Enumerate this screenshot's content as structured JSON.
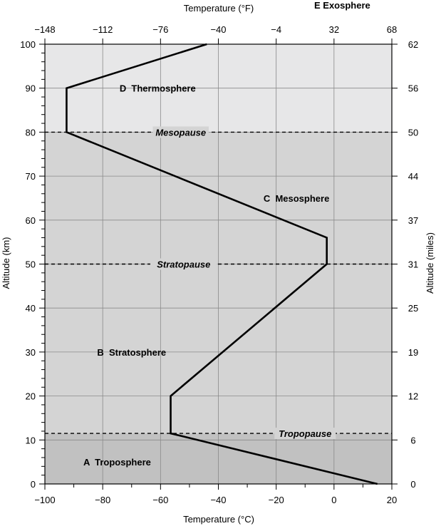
{
  "chart_data": {
    "type": "line",
    "xlabel_bottom": "Temperature (°C)",
    "xlabel_top": "Temperature (°F)",
    "ylabel_left": "Altitude (km)",
    "ylabel_right": "Altitude (miles)",
    "xlim": [
      -100,
      20
    ],
    "ylim": [
      0,
      100
    ],
    "bottom_ticks": [
      -100,
      -80,
      -60,
      -40,
      -20,
      0,
      20
    ],
    "bottom_tick_labels": [
      "−100",
      "−80",
      "−60",
      "−40",
      "−20",
      "0",
      "20"
    ],
    "top_ticks_c": [
      -100,
      -80,
      -60,
      -40,
      -20,
      0,
      20
    ],
    "top_tick_labels": [
      "−148",
      "−112",
      "−76",
      "−40",
      "−4",
      "32",
      "68"
    ],
    "left_ticks": [
      0,
      10,
      20,
      30,
      40,
      50,
      60,
      70,
      80,
      90,
      100
    ],
    "left_tick_labels": [
      "0",
      "10",
      "20",
      "30",
      "40",
      "50",
      "60",
      "70",
      "80",
      "90",
      "100"
    ],
    "right_ticks_km": [
      0,
      10,
      20,
      30,
      40,
      50,
      60,
      70,
      80,
      90,
      100
    ],
    "right_tick_labels": [
      "0",
      "6",
      "12",
      "19",
      "25",
      "31",
      "37",
      "44",
      "50",
      "56",
      "62"
    ],
    "grid": true,
    "series": [
      {
        "x": [
          15,
          -56.5,
          -56.5,
          -2.5,
          -2.5,
          -92.5,
          -92.5,
          -44
        ],
        "y": [
          0,
          11.5,
          20,
          50,
          56,
          80,
          90,
          100
        ]
      }
    ],
    "bands": [
      {
        "from": 0,
        "to": 11.5,
        "color": "#c1c1c1"
      },
      {
        "from": 11.5,
        "to": 80,
        "color": "#d4d4d4"
      },
      {
        "from": 80,
        "to": 100,
        "color": "#e7e7e8"
      }
    ],
    "boundaries": [
      {
        "y": 11.5,
        "label": "Tropopause"
      },
      {
        "y": 50,
        "label": "Stratopause"
      },
      {
        "y": 80,
        "label": "Mesopause"
      }
    ],
    "layers": [
      {
        "label": "A  Troposphere",
        "x": -75,
        "y": 5
      },
      {
        "label": "B  Stratosphere",
        "x": -70,
        "y": 30
      },
      {
        "label": "C  Mesosphere",
        "x": -13,
        "y": 65
      },
      {
        "label": "D  Thermosphere",
        "x": -61,
        "y": 90
      }
    ],
    "exosphere_label": "E  Exosphere"
  }
}
